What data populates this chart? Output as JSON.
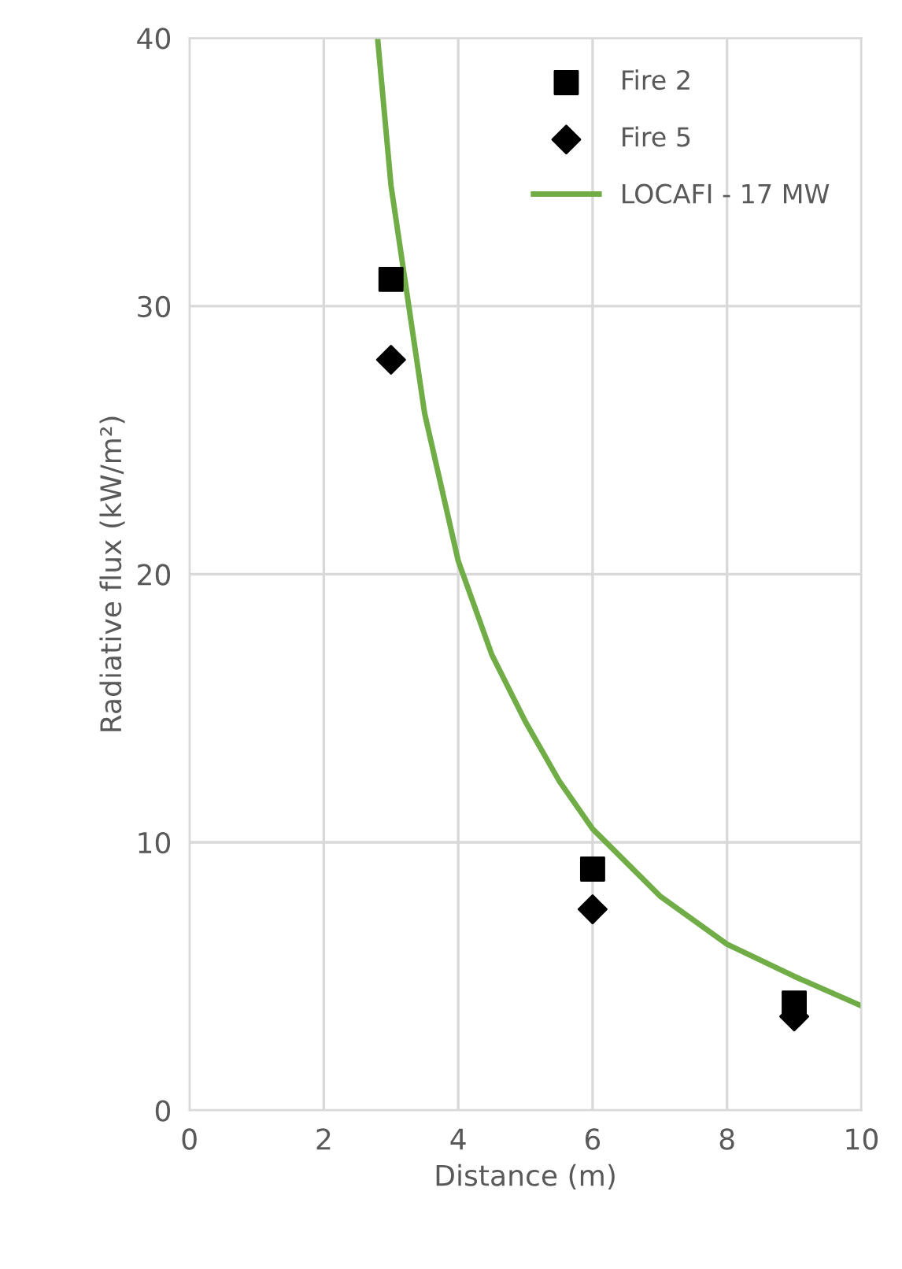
{
  "chart_data": {
    "type": "scatter",
    "xlabel": "Distance (m)",
    "ylabel": "Radiative flux (kW/m²)",
    "xlim": [
      0,
      10
    ],
    "xticks": [
      0,
      2,
      4,
      6,
      8,
      10
    ],
    "ylim": [
      0,
      40
    ],
    "yticks": [
      0,
      10,
      20,
      30,
      40
    ],
    "grid": true,
    "legend": "top right",
    "series": [
      {
        "name": "Fire 2",
        "marker": "square",
        "color": "#000000",
        "x": [
          3,
          6,
          9
        ],
        "values": [
          31,
          9,
          4
        ]
      },
      {
        "name": "Fire 5",
        "marker": "diamond",
        "color": "#000000",
        "x": [
          3,
          6,
          9
        ],
        "values": [
          28,
          7.5,
          3.5
        ]
      },
      {
        "name": "LOCAFI - 17 MW",
        "type": "line",
        "marker": "none",
        "color": "#70ad47",
        "x": [
          2.8,
          3,
          3.5,
          4,
          4.5,
          5,
          5.5,
          6,
          7,
          8,
          9,
          10
        ],
        "values": [
          40,
          34.5,
          26,
          20.5,
          17,
          14.5,
          12.3,
          10.5,
          8,
          6.2,
          5,
          3.9
        ]
      }
    ]
  }
}
